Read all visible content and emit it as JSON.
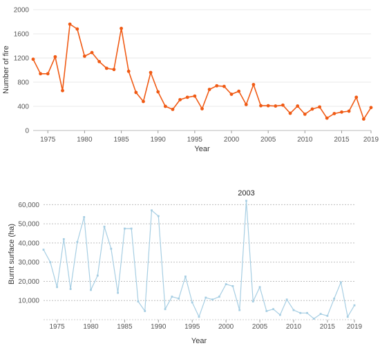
{
  "chart_data": [
    {
      "type": "line",
      "xlabel": "Year",
      "ylabel": "Number of fire",
      "xlim": [
        1973,
        2019
      ],
      "ylim": [
        0,
        2000
      ],
      "x_ticks": [
        "1975",
        "1980",
        "1985",
        "1990",
        "1995",
        "2000",
        "2005",
        "2010",
        "2015",
        "2019"
      ],
      "y_ticks": [
        "0",
        "400",
        "800",
        "1200",
        "1600",
        "2000"
      ],
      "grid": true,
      "color": "#f05a14",
      "series": [
        {
          "x": [
            1973,
            1974,
            1975,
            1976,
            1977,
            1978,
            1979,
            1980,
            1981,
            1982,
            1983,
            1984,
            1985,
            1986,
            1987,
            1988,
            1989,
            1990,
            1991,
            1992,
            1993,
            1994,
            1995,
            1996,
            1997,
            1998,
            1999,
            2000,
            2001,
            2002,
            2003,
            2004,
            2005,
            2006,
            2007,
            2008,
            2009,
            2010,
            2011,
            2012,
            2013,
            2014,
            2015,
            2016,
            2017,
            2018,
            2019
          ],
          "values": [
            1180,
            940,
            940,
            1220,
            660,
            1760,
            1680,
            1230,
            1290,
            1140,
            1030,
            1010,
            1690,
            980,
            630,
            480,
            960,
            640,
            400,
            350,
            510,
            550,
            570,
            360,
            680,
            740,
            730,
            600,
            650,
            430,
            760,
            410,
            410,
            405,
            420,
            285,
            405,
            270,
            355,
            390,
            205,
            280,
            305,
            320,
            550,
            190,
            380
          ]
        }
      ]
    },
    {
      "type": "line",
      "xlabel": "Year",
      "ylabel": "Burnt surface (ha)",
      "xlim": [
        1973,
        2019
      ],
      "ylim": [
        0,
        63000
      ],
      "x_ticks": [
        "1975",
        "1980",
        "1985",
        "1990",
        "1995",
        "2000",
        "2005",
        "2010",
        "2015",
        "2019"
      ],
      "y_ticks": [
        "10,000",
        "20,000",
        "30,000",
        "40,000",
        "50,000",
        "60,000"
      ],
      "grid": true,
      "color": "#a6cee3",
      "annotations": [
        {
          "x": 2003,
          "text": "2003"
        }
      ],
      "series": [
        {
          "x": [
            1973,
            1974,
            1975,
            1976,
            1977,
            1978,
            1979,
            1980,
            1981,
            1982,
            1983,
            1984,
            1985,
            1986,
            1987,
            1988,
            1989,
            1990,
            1991,
            1992,
            1993,
            1994,
            1995,
            1996,
            1997,
            1998,
            1999,
            2000,
            2001,
            2002,
            2003,
            2004,
            2005,
            2006,
            2007,
            2008,
            2009,
            2010,
            2011,
            2012,
            2013,
            2014,
            2015,
            2016,
            2017,
            2018,
            2019
          ],
          "values": [
            36500,
            30000,
            17000,
            42000,
            16000,
            40500,
            53500,
            15500,
            23000,
            48500,
            37000,
            14000,
            47500,
            47500,
            9500,
            4500,
            57000,
            54000,
            5500,
            12000,
            11000,
            22500,
            9000,
            1500,
            11500,
            10500,
            12000,
            18500,
            17500,
            5000,
            62000,
            9500,
            17000,
            4500,
            5500,
            2500,
            10500,
            5000,
            3500,
            3500,
            500,
            3000,
            2000,
            11000,
            19500,
            1500,
            7500
          ]
        }
      ]
    }
  ]
}
